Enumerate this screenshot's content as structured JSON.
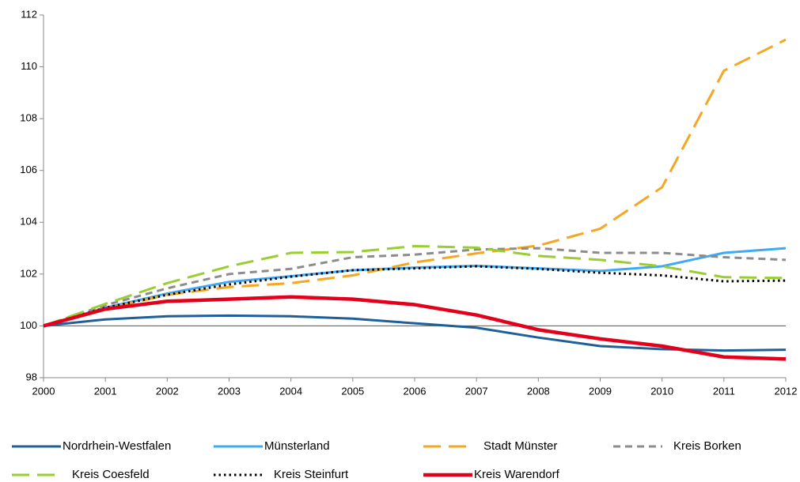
{
  "chart_data": {
    "type": "line",
    "x": [
      2000,
      2001,
      2002,
      2003,
      2004,
      2005,
      2006,
      2007,
      2008,
      2009,
      2010,
      2011,
      2012
    ],
    "xlim": [
      2000,
      2012
    ],
    "xticks": [
      2000,
      2001,
      2002,
      2003,
      2004,
      2005,
      2006,
      2007,
      2008,
      2009,
      2010,
      2011,
      2012
    ],
    "ylim": [
      98,
      112
    ],
    "yticks": [
      98,
      100,
      102,
      104,
      106,
      108,
      110,
      112
    ],
    "reference_line": 100,
    "grid": false,
    "legend": "bottom",
    "series": [
      {
        "name": "Nordrhein-Westfalen",
        "color": "#1f5f99",
        "style": "solid",
        "linewidth": 3,
        "values": [
          100,
          100.25,
          100.37,
          100.4,
          100.37,
          100.28,
          100.1,
          99.93,
          99.55,
          99.22,
          99.1,
          99.05,
          99.08
        ]
      },
      {
        "name": "Münsterland",
        "color": "#3fa9f5",
        "style": "solid",
        "linewidth": 3,
        "values": [
          100,
          100.7,
          101.25,
          101.7,
          101.92,
          102.15,
          102.25,
          102.32,
          102.22,
          102.12,
          102.3,
          102.82,
          103.0
        ]
      },
      {
        "name": "Stadt Münster",
        "color": "#f5a623",
        "style": "dashed",
        "linewidth": 3,
        "values": [
          100,
          100.65,
          101.2,
          101.5,
          101.65,
          101.95,
          102.45,
          102.8,
          103.1,
          103.75,
          105.35,
          109.85,
          111.05
        ]
      },
      {
        "name": "Kreis Borken",
        "color": "#8c8c8c",
        "style": "dashed-short",
        "linewidth": 3,
        "values": [
          100,
          100.8,
          101.45,
          102.0,
          102.2,
          102.65,
          102.75,
          102.95,
          103.0,
          102.82,
          102.82,
          102.65,
          102.55
        ]
      },
      {
        "name": "Kreis Coesfeld",
        "color": "#9acd32",
        "style": "dashed",
        "linewidth": 3,
        "values": [
          100,
          100.85,
          101.65,
          102.3,
          102.82,
          102.85,
          103.08,
          103.02,
          102.7,
          102.55,
          102.3,
          101.88,
          101.85
        ]
      },
      {
        "name": "Kreis Steinfurt",
        "color": "#000000",
        "style": "dotted",
        "linewidth": 3,
        "values": [
          100,
          100.7,
          101.2,
          101.6,
          101.9,
          102.15,
          102.22,
          102.3,
          102.2,
          102.05,
          101.95,
          101.72,
          101.75
        ]
      },
      {
        "name": "Kreis Warendorf",
        "color": "#e3001b",
        "style": "solid",
        "linewidth": 4.5,
        "values": [
          100,
          100.65,
          100.95,
          101.03,
          101.12,
          101.03,
          100.82,
          100.42,
          99.85,
          99.5,
          99.22,
          98.8,
          98.72
        ]
      }
    ]
  }
}
